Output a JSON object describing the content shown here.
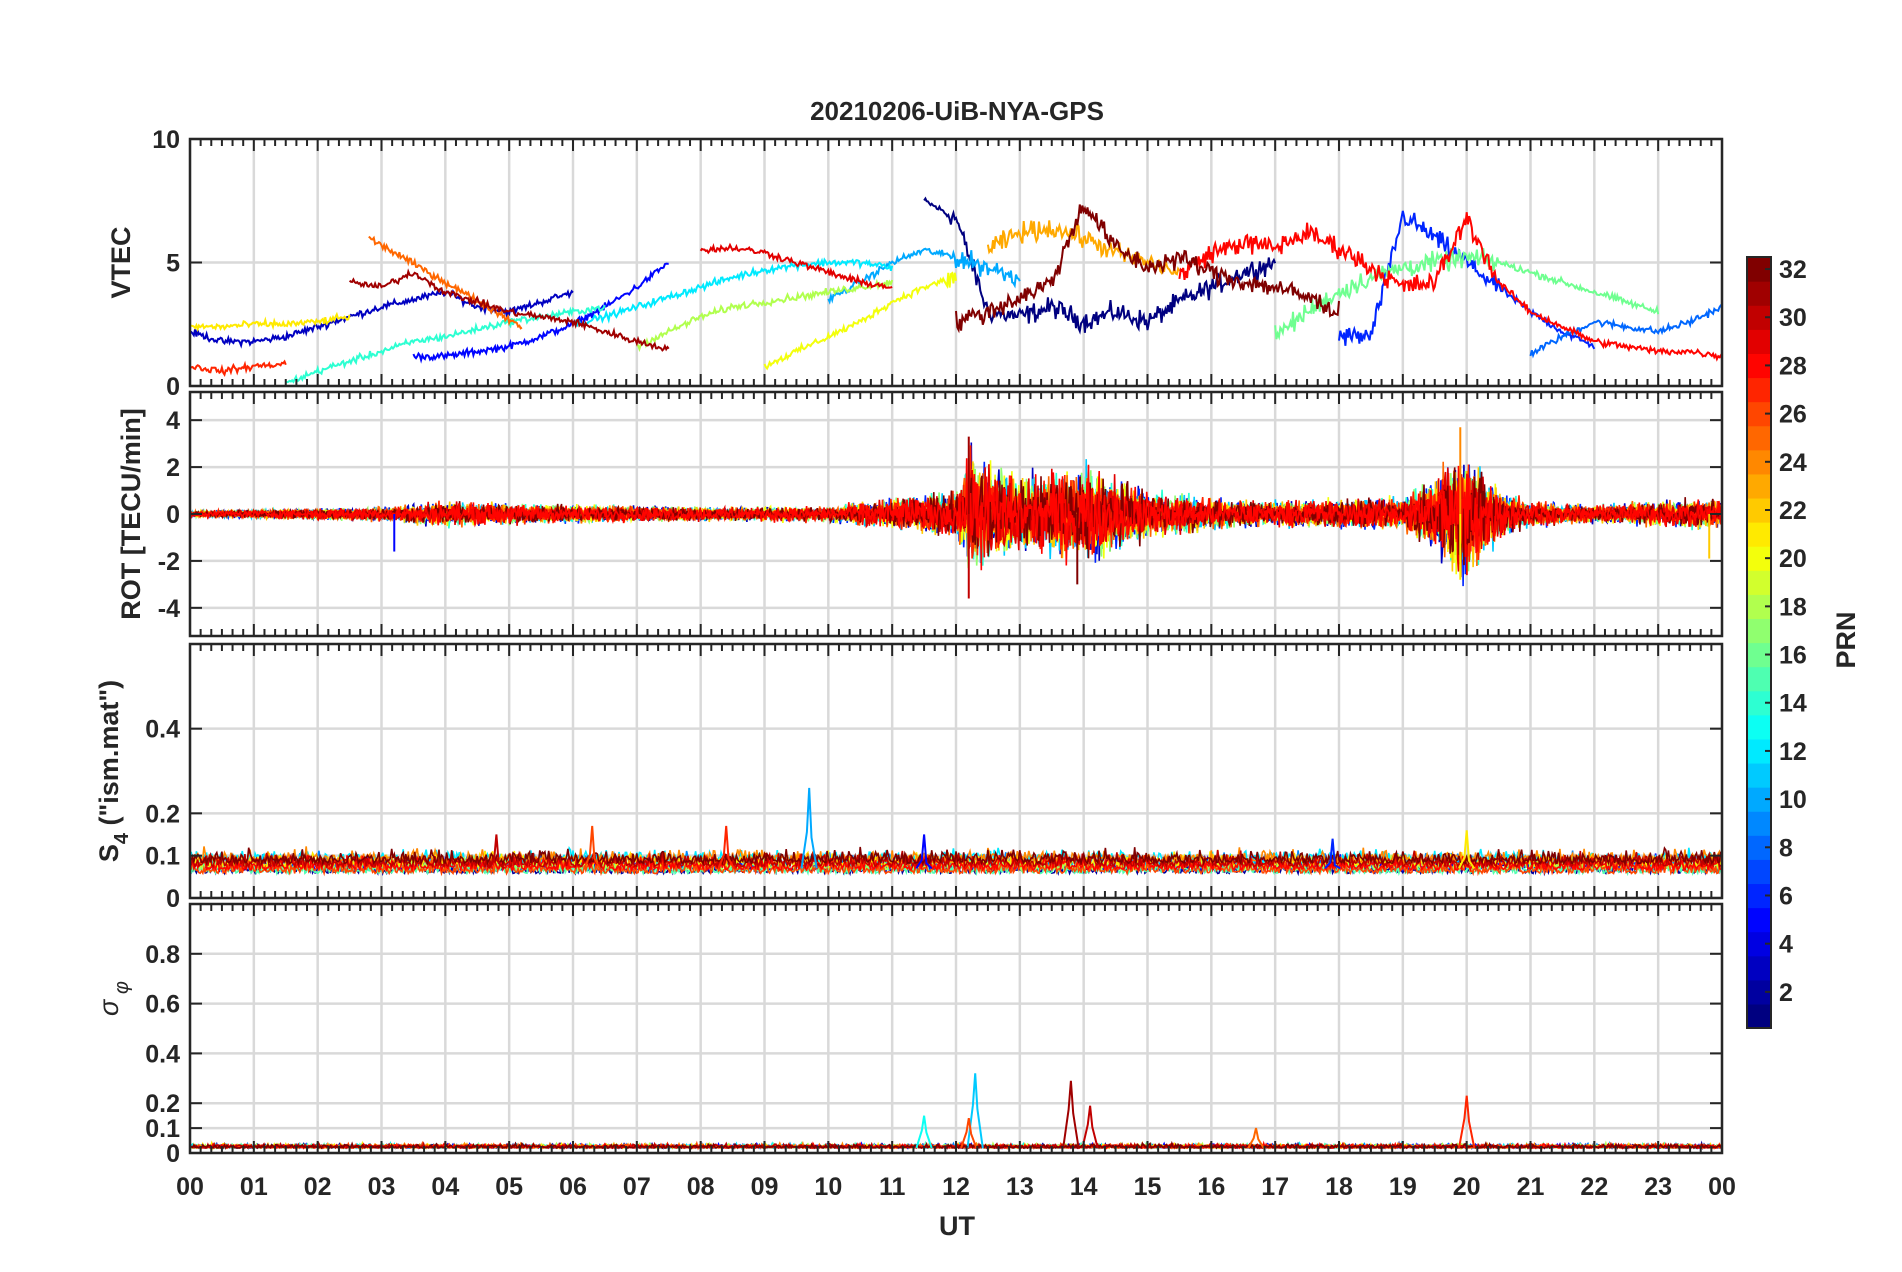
{
  "figure": {
    "title": "20210206-UiB-NYA-GPS",
    "xlabel": "UT",
    "x_ticks": [
      "00",
      "01",
      "02",
      "03",
      "04",
      "05",
      "06",
      "07",
      "08",
      "09",
      "10",
      "11",
      "12",
      "13",
      "14",
      "15",
      "16",
      "17",
      "18",
      "19",
      "20",
      "21",
      "22",
      "23",
      "00"
    ]
  },
  "colorbar": {
    "label": "PRN",
    "range": [
      1,
      32
    ],
    "ticks": [
      2,
      4,
      6,
      8,
      10,
      12,
      14,
      16,
      18,
      20,
      22,
      24,
      26,
      28,
      30,
      32
    ],
    "colormap": "jet"
  },
  "chart_data": [
    {
      "type": "line",
      "panel": "VTEC",
      "ylabel": "VTEC",
      "ylim": [
        0,
        10
      ],
      "y_ticks": [
        0,
        5,
        10
      ],
      "xlim": [
        0,
        24
      ],
      "x_unit": "hours UT",
      "grid": true,
      "series": [
        {
          "prn": 1,
          "x": [
            11.5,
            12.0,
            12.5,
            13.0,
            13.5,
            14.0,
            14.5,
            15.0,
            15.5,
            16.0,
            16.5,
            17.0
          ],
          "y": [
            7.5,
            6.8,
            3.0,
            2.8,
            3.2,
            2.6,
            3.0,
            2.6,
            3.4,
            4.0,
            4.6,
            5.0
          ]
        },
        {
          "prn": 3,
          "x": [
            0.0,
            0.5,
            1.0,
            1.5,
            2.0,
            2.5,
            3.0,
            3.5,
            4.0,
            4.5,
            5.0,
            5.5,
            6.0
          ],
          "y": [
            2.2,
            1.8,
            1.8,
            2.0,
            2.4,
            2.8,
            3.2,
            3.5,
            3.8,
            3.2,
            3.0,
            3.4,
            3.8
          ]
        },
        {
          "prn": 5,
          "x": [
            3.5,
            4.0,
            4.5,
            5.0,
            5.5,
            6.0,
            6.5,
            7.0,
            7.5
          ],
          "y": [
            1.2,
            1.2,
            1.4,
            1.6,
            2.0,
            2.5,
            3.2,
            4.0,
            5.0
          ]
        },
        {
          "prn": 6,
          "x": [
            18.0,
            18.5,
            19.0,
            19.5,
            20.0,
            20.5,
            21.0,
            21.5,
            22.0
          ],
          "y": [
            2.0,
            2.0,
            6.9,
            6.0,
            5.0,
            4.0,
            3.0,
            2.2,
            1.6
          ]
        },
        {
          "prn": 8,
          "x": [
            21.0,
            21.5,
            22.0,
            22.5,
            23.0,
            23.5,
            24.0
          ],
          "y": [
            1.3,
            2.0,
            2.6,
            2.4,
            2.2,
            2.6,
            3.2
          ]
        },
        {
          "prn": 10,
          "x": [
            10.0,
            10.5,
            11.0,
            11.5,
            12.0,
            12.5,
            13.0
          ],
          "y": [
            3.5,
            4.2,
            5.0,
            5.5,
            5.2,
            4.8,
            4.4
          ]
        },
        {
          "prn": 12,
          "x": [
            6.0,
            6.5,
            7.0,
            7.5,
            8.0,
            8.5,
            9.0,
            9.5,
            10.0,
            10.5,
            11.0
          ],
          "y": [
            2.5,
            2.8,
            3.2,
            3.6,
            4.0,
            4.4,
            4.7,
            4.9,
            5.0,
            5.0,
            4.8
          ]
        },
        {
          "prn": 14,
          "x": [
            1.5,
            2.0,
            2.5,
            3.0,
            3.5,
            4.0,
            4.5,
            5.0,
            5.5,
            6.0,
            6.5
          ],
          "y": [
            0.1,
            0.6,
            1.0,
            1.4,
            1.8,
            2.0,
            2.3,
            2.6,
            2.8,
            3.0,
            3.2
          ]
        },
        {
          "prn": 16,
          "x": [
            17.0,
            17.5,
            18.0,
            18.5,
            19.0,
            19.5,
            20.0,
            20.5,
            21.0,
            21.5,
            22.0,
            22.5,
            23.0
          ],
          "y": [
            2.0,
            3.0,
            3.8,
            4.4,
            4.8,
            5.0,
            5.2,
            5.0,
            4.6,
            4.2,
            3.8,
            3.4,
            3.0
          ]
        },
        {
          "prn": 18,
          "x": [
            7.0,
            7.5,
            8.0,
            8.5,
            9.0,
            9.5,
            10.0,
            10.5,
            11.0
          ],
          "y": [
            1.6,
            2.2,
            2.8,
            3.2,
            3.4,
            3.6,
            3.8,
            4.0,
            4.2
          ]
        },
        {
          "prn": 20,
          "x": [
            9.0,
            9.5,
            10.0,
            10.5,
            11.0,
            11.5,
            12.0
          ],
          "y": [
            0.8,
            1.4,
            2.0,
            2.6,
            3.4,
            4.0,
            4.4
          ]
        },
        {
          "prn": 21,
          "x": [
            0.0,
            0.5,
            1.0,
            1.5,
            2.0,
            2.5
          ],
          "y": [
            2.4,
            2.4,
            2.5,
            2.5,
            2.6,
            2.8
          ]
        },
        {
          "prn": 23,
          "x": [
            12.5,
            13.0,
            13.5,
            14.0,
            14.5,
            15.0,
            15.5
          ],
          "y": [
            5.5,
            6.2,
            6.4,
            6.0,
            5.4,
            5.0,
            4.6
          ]
        },
        {
          "prn": 25,
          "x": [
            2.8,
            3.2,
            3.6,
            4.0,
            4.4,
            4.8,
            5.2
          ],
          "y": [
            6.0,
            5.4,
            4.8,
            4.2,
            3.6,
            3.0,
            2.4
          ]
        },
        {
          "prn": 27,
          "x": [
            0.0,
            0.5,
            1.0,
            1.5
          ],
          "y": [
            0.8,
            0.6,
            0.8,
            0.9
          ]
        },
        {
          "prn": 28,
          "x": [
            15.5,
            16.0,
            16.5,
            17.0,
            17.5,
            18.0,
            18.5,
            19.0,
            19.5,
            20.0,
            20.5,
            21.0,
            21.5,
            22.0,
            22.5,
            23.0,
            23.5,
            24.0
          ],
          "y": [
            4.5,
            5.4,
            5.8,
            5.6,
            6.2,
            5.6,
            4.8,
            4.0,
            4.2,
            6.8,
            4.2,
            3.0,
            2.4,
            1.8,
            1.6,
            1.4,
            1.4,
            1.2
          ]
        },
        {
          "prn": 29,
          "x": [
            8.0,
            8.5,
            9.0,
            9.5,
            10.0,
            10.5,
            11.0
          ],
          "y": [
            5.5,
            5.6,
            5.4,
            5.0,
            4.6,
            4.2,
            4.0
          ]
        },
        {
          "prn": 31,
          "x": [
            2.5,
            3.0,
            3.5,
            4.0,
            4.5,
            5.0,
            5.5,
            6.0,
            6.5,
            7.0,
            7.5
          ],
          "y": [
            4.2,
            4.0,
            4.6,
            3.8,
            3.4,
            3.0,
            2.8,
            2.6,
            2.2,
            1.8,
            1.5
          ]
        },
        {
          "prn": 32,
          "x": [
            12.0,
            12.5,
            13.0,
            13.5,
            14.0,
            14.5,
            15.0,
            15.5,
            16.0,
            16.5,
            17.0,
            17.5,
            18.0
          ],
          "y": [
            2.6,
            3.0,
            3.6,
            4.2,
            7.4,
            5.6,
            4.8,
            5.2,
            4.6,
            4.2,
            4.0,
            3.6,
            3.0
          ]
        }
      ]
    },
    {
      "type": "line",
      "panel": "ROT",
      "ylabel": "ROT [TECU/min]",
      "ylim": [
        -5.2,
        5.2
      ],
      "y_ticks": [
        -4,
        -2,
        0,
        2,
        4
      ],
      "xlim": [
        0,
        24
      ],
      "grid": true,
      "noise_envelope": {
        "x": [
          0,
          3,
          4,
          6,
          8,
          10,
          11,
          12,
          12.2,
          13,
          14,
          15,
          16,
          17,
          18,
          19,
          20,
          20.5,
          21,
          22,
          23,
          24
        ],
        "amplitude": [
          0.15,
          0.4,
          0.7,
          0.5,
          0.4,
          0.45,
          0.9,
          1.2,
          3.4,
          2.0,
          2.8,
          1.4,
          0.9,
          0.7,
          0.8,
          0.9,
          3.6,
          1.5,
          0.7,
          0.5,
          0.7,
          0.9
        ]
      },
      "spikes": [
        {
          "prn": 31,
          "x": 12.2,
          "y": 3.3
        },
        {
          "prn": 30,
          "x": 12.2,
          "y": -3.6
        },
        {
          "prn": 24,
          "x": 19.9,
          "y": 3.7
        },
        {
          "prn": 21,
          "x": 19.9,
          "y": -2.8
        },
        {
          "prn": 5,
          "x": 3.2,
          "y": -1.6
        },
        {
          "prn": 32,
          "x": 13.9,
          "y": -3.0
        },
        {
          "prn": 22,
          "x": 23.8,
          "y": -1.9
        }
      ]
    },
    {
      "type": "line",
      "panel": "S4",
      "ylabel": "S4 (\"ism.mat\")",
      "ylim": [
        0,
        0.6
      ],
      "y_ticks": [
        0,
        0.1,
        0.2,
        0.4
      ],
      "y_tick_labels": [
        "0",
        "0.1",
        "0.2",
        "0.4"
      ],
      "xlim": [
        0,
        24
      ],
      "grid": true,
      "baseline": 0.07,
      "spread": 0.04,
      "peaks": [
        {
          "prn": 10,
          "x": 9.7,
          "y": 0.26
        },
        {
          "prn": 26,
          "x": 6.3,
          "y": 0.17
        },
        {
          "prn": 27,
          "x": 8.4,
          "y": 0.17
        },
        {
          "prn": 30,
          "x": 4.8,
          "y": 0.15
        },
        {
          "prn": 5,
          "x": 11.5,
          "y": 0.15
        },
        {
          "prn": 6,
          "x": 17.9,
          "y": 0.14
        },
        {
          "prn": 21,
          "x": 20.0,
          "y": 0.16
        }
      ]
    },
    {
      "type": "line",
      "panel": "sigma_phi",
      "ylabel": "σφ",
      "ylim": [
        0,
        1.0
      ],
      "y_ticks": [
        0,
        0.1,
        0.2,
        0.4,
        0.6,
        0.8
      ],
      "y_tick_labels": [
        "0",
        "0.1",
        "0.2",
        "0.4",
        "0.6",
        "0.8"
      ],
      "xlim": [
        0,
        24
      ],
      "grid": true,
      "baseline": 0.02,
      "peaks": [
        {
          "prn": 11,
          "x": 12.3,
          "y": 0.32
        },
        {
          "prn": 31,
          "x": 13.8,
          "y": 0.29
        },
        {
          "prn": 27,
          "x": 20.0,
          "y": 0.23
        },
        {
          "prn": 30,
          "x": 14.1,
          "y": 0.19
        },
        {
          "prn": 13,
          "x": 11.5,
          "y": 0.15
        },
        {
          "prn": 26,
          "x": 12.2,
          "y": 0.14
        },
        {
          "prn": 25,
          "x": 16.7,
          "y": 0.1
        }
      ]
    }
  ]
}
